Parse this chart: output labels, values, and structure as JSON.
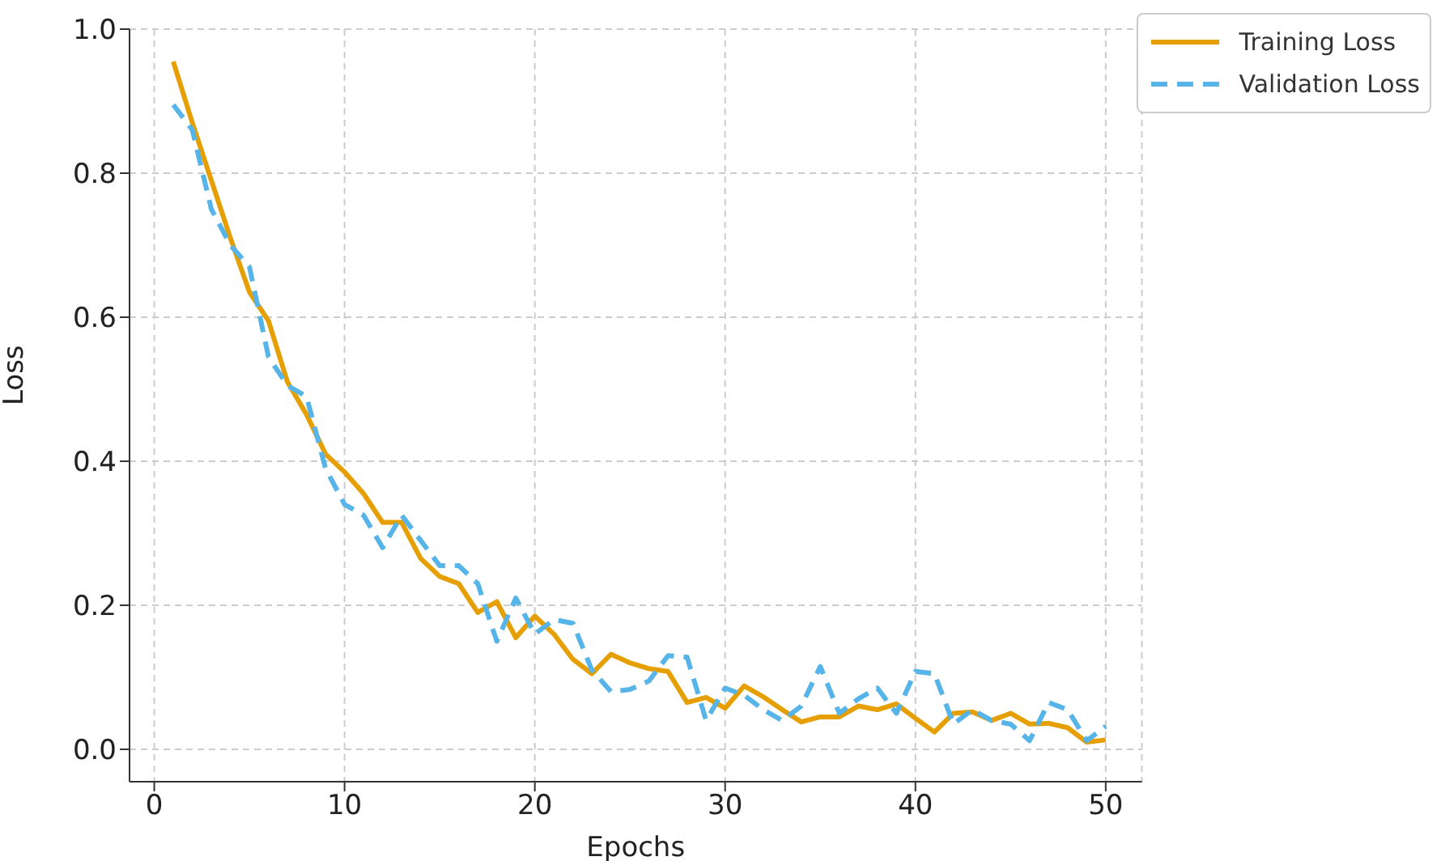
{
  "chart_data": {
    "type": "line",
    "xlabel": "Epochs",
    "ylabel": "Loss",
    "x": [
      1,
      2,
      3,
      4,
      5,
      6,
      7,
      8,
      9,
      10,
      11,
      12,
      13,
      14,
      15,
      16,
      17,
      18,
      19,
      20,
      21,
      22,
      23,
      24,
      25,
      26,
      27,
      28,
      29,
      30,
      31,
      32,
      33,
      34,
      35,
      36,
      37,
      38,
      39,
      40,
      41,
      42,
      43,
      44,
      45,
      46,
      47,
      48,
      49,
      50
    ],
    "series": [
      {
        "name": "Training Loss",
        "color": "#e69f00",
        "line_style": "solid",
        "values": [
          0.955,
          0.87,
          0.79,
          0.71,
          0.635,
          0.595,
          0.51,
          0.465,
          0.41,
          0.385,
          0.355,
          0.315,
          0.315,
          0.265,
          0.24,
          0.23,
          0.19,
          0.205,
          0.155,
          0.185,
          0.16,
          0.125,
          0.105,
          0.132,
          0.12,
          0.112,
          0.108,
          0.065,
          0.072,
          0.057,
          0.088,
          0.073,
          0.055,
          0.038,
          0.045,
          0.045,
          0.06,
          0.055,
          0.063,
          0.043,
          0.024,
          0.05,
          0.052,
          0.04,
          0.05,
          0.035,
          0.036,
          0.03,
          0.01,
          0.013
        ]
      },
      {
        "name": "Validation Loss",
        "color": "#56b4e9",
        "line_style": "dashed",
        "values": [
          0.895,
          0.86,
          0.75,
          0.7,
          0.67,
          0.545,
          0.505,
          0.49,
          0.39,
          0.34,
          0.325,
          0.28,
          0.325,
          0.29,
          0.255,
          0.255,
          0.23,
          0.15,
          0.21,
          0.16,
          0.18,
          0.175,
          0.11,
          0.08,
          0.083,
          0.095,
          0.13,
          0.128,
          0.04,
          0.085,
          0.075,
          0.055,
          0.04,
          0.06,
          0.115,
          0.05,
          0.07,
          0.085,
          0.05,
          0.108,
          0.105,
          0.035,
          0.055,
          0.04,
          0.035,
          0.012,
          0.065,
          0.055,
          0.012,
          0.032
        ]
      }
    ],
    "xlim": [
      -1.3,
      51.9
    ],
    "xticks": [
      0,
      10,
      20,
      30,
      40,
      50
    ],
    "ylim": [
      -0.045,
      1.0
    ],
    "yticks": [
      {
        "value": 0,
        "label": "0.0"
      },
      {
        "value": 0.2,
        "label": "0.2"
      },
      {
        "value": 0.4,
        "label": "0.4"
      },
      {
        "value": 0.6,
        "label": "0.6"
      },
      {
        "value": 0.8,
        "label": "0.8"
      },
      {
        "value": 1,
        "label": "1.0"
      }
    ],
    "grid": true,
    "legend": "top right",
    "marker": "none"
  }
}
